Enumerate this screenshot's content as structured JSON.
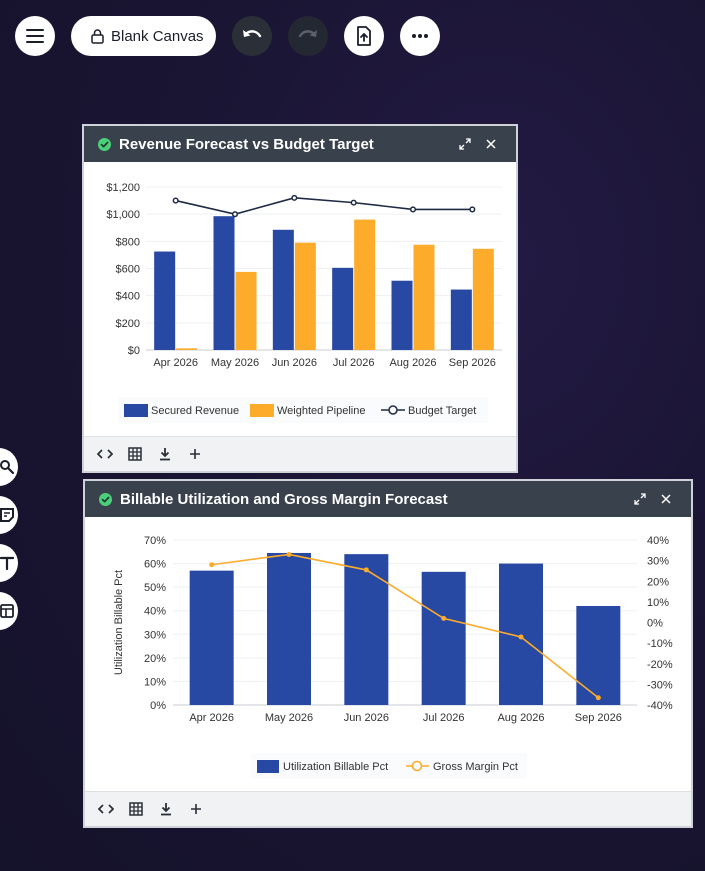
{
  "toolbar": {
    "canvas_label": "Blank Canvas",
    "icons": [
      "menu-icon",
      "lock-icon",
      "undo-icon",
      "redo-icon",
      "export-icon",
      "more-icon"
    ]
  },
  "side_tools": [
    "search-icon",
    "sticky-note-icon",
    "text-icon",
    "layout-icon"
  ],
  "colors": {
    "blue": "#2748a3",
    "orange": "#fdab2b",
    "navy": "#1f2a44",
    "header": "#39414d"
  },
  "card1": {
    "title": "Revenue Forecast vs Budget Target",
    "footer_icons": [
      "code-icon",
      "table-icon",
      "download-icon",
      "add-icon"
    ]
  },
  "card2": {
    "title": "Billable Utilization and Gross Margin Forecast",
    "footer_icons": [
      "code-icon",
      "table-icon",
      "download-icon",
      "add-icon"
    ]
  },
  "chart_data": [
    {
      "type": "bar",
      "title": "Revenue Forecast vs Budget Target",
      "categories": [
        "Apr 2026",
        "May 2026",
        "Jun 2026",
        "Jul 2026",
        "Aug 2026",
        "Sep 2026"
      ],
      "y_ticks": [
        "$0",
        "$200",
        "$400",
        "$600",
        "$800",
        "$1,000",
        "$1,200"
      ],
      "ylim": [
        0,
        1200
      ],
      "series": [
        {
          "name": "Secured Revenue",
          "type": "bar",
          "values": [
            725,
            985,
            885,
            605,
            510,
            445
          ]
        },
        {
          "name": "Weighted Pipeline",
          "type": "bar",
          "values": [
            12,
            575,
            790,
            960,
            775,
            745
          ]
        },
        {
          "name": "Budget Target",
          "type": "line",
          "values": [
            1100,
            1000,
            1120,
            1085,
            1035,
            1035
          ]
        }
      ],
      "legend": [
        "Secured Revenue",
        "Weighted Pipeline",
        "Budget Target"
      ],
      "legend_position": "bottom"
    },
    {
      "type": "bar",
      "title": "Billable Utilization and Gross Margin Forecast",
      "ylabel": "Utilization Billable Pct",
      "categories": [
        "Apr 2026",
        "May 2026",
        "Jun 2026",
        "Jul 2026",
        "Aug 2026",
        "Sep 2026"
      ],
      "y_ticks": [
        "0%",
        "10%",
        "20%",
        "30%",
        "40%",
        "50%",
        "60%",
        "70%"
      ],
      "y2_ticks": [
        "-40%",
        "-30%",
        "-20%",
        "-10%",
        "0%",
        "10%",
        "20%",
        "30%",
        "40%"
      ],
      "ylim": [
        0,
        70
      ],
      "y2lim": [
        -40,
        40
      ],
      "series": [
        {
          "name": "Utilization Billable Pct",
          "type": "bar",
          "axis": "left",
          "values": [
            57,
            64.5,
            64,
            56.5,
            60,
            42
          ]
        },
        {
          "name": "Gross Margin Pct",
          "type": "line",
          "axis": "right",
          "values": [
            28,
            33,
            25.5,
            2,
            -7,
            -36.5
          ]
        }
      ],
      "legend": [
        "Utilization Billable Pct",
        "Gross Margin Pct"
      ],
      "legend_position": "bottom"
    }
  ]
}
